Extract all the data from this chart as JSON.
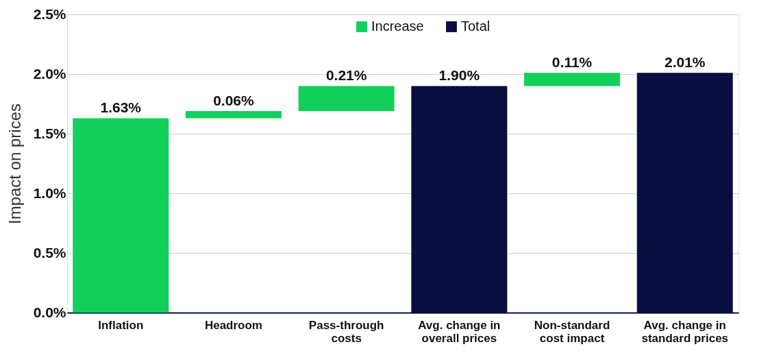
{
  "chart_data": {
    "type": "bar",
    "ylabel": "Impact on prices",
    "categories": [
      "Inflation",
      "Headroom",
      "Pass-through costs",
      "Avg. change in overall prices",
      "Non-standard cost impact",
      "Avg. change in standard prices"
    ],
    "series": [
      {
        "name": "Increase",
        "color": "#12cf5c",
        "values": [
          1.63,
          0.06,
          0.21,
          null,
          0.11,
          null
        ],
        "base": [
          0,
          1.63,
          1.69,
          null,
          1.9,
          null
        ]
      },
      {
        "name": "Total",
        "color": "#0a0e3e",
        "values": [
          null,
          null,
          null,
          1.9,
          null,
          2.01
        ],
        "base": [
          null,
          null,
          null,
          0,
          null,
          0
        ]
      }
    ],
    "value_labels": [
      "1.63%",
      "0.06%",
      "0.21%",
      "1.90%",
      "0.11%",
      "2.01%"
    ],
    "ylim": [
      0,
      2.5
    ],
    "yticks": [
      {
        "value": 0,
        "label": "0.0%"
      },
      {
        "value": 0.5,
        "label": "0.5%"
      },
      {
        "value": 1.0,
        "label": "1.0%"
      },
      {
        "value": 1.5,
        "label": "1.5%"
      },
      {
        "value": 2.0,
        "label": "2.0%"
      },
      {
        "value": 2.5,
        "label": "2.5%"
      }
    ],
    "grid": "y",
    "legend": "top"
  }
}
